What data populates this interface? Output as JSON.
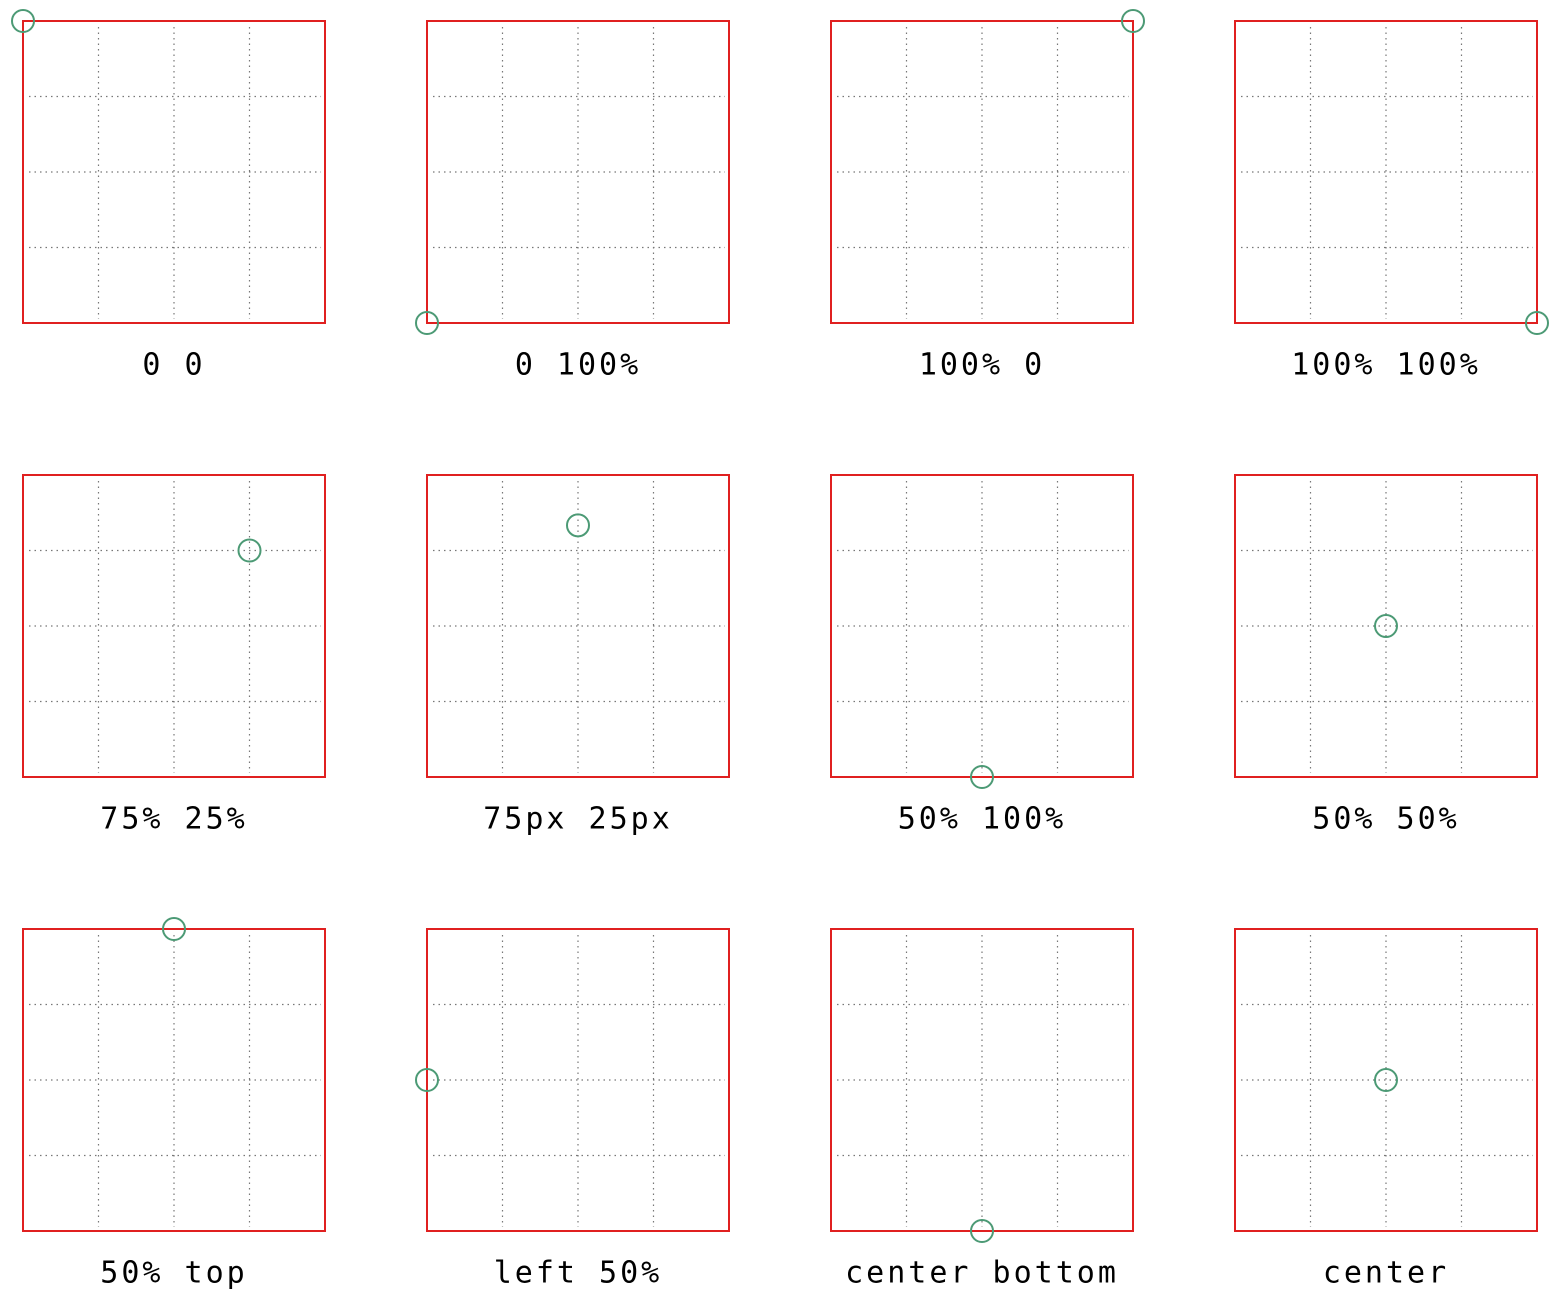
{
  "labels": [
    "0 0",
    "0 100%",
    "100% 0",
    "100% 100%",
    "75% 25%",
    "75px 25px",
    "50% 100%",
    "50% 50%",
    "50% top",
    "left 50%",
    "center bottom",
    "center"
  ]
}
